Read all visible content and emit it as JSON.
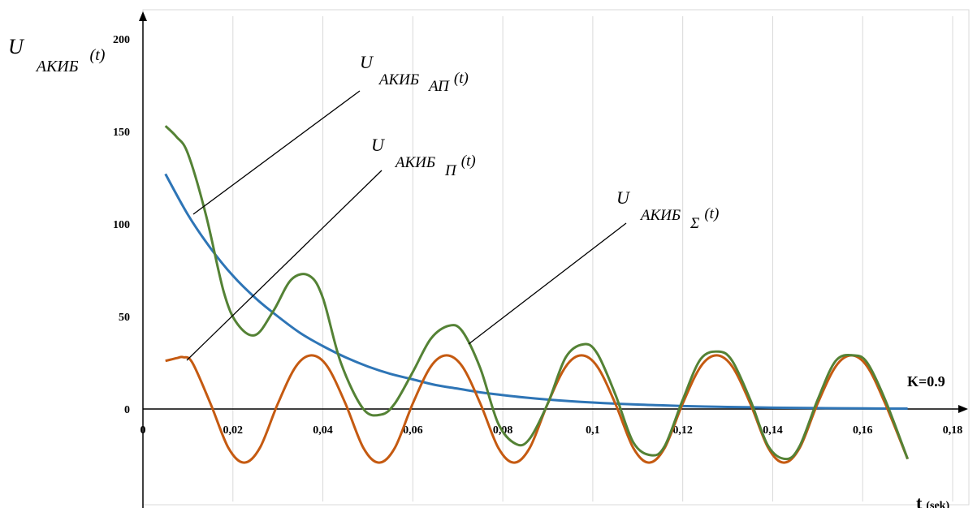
{
  "chart_data": {
    "type": "line",
    "x_ticks": [
      "0",
      "0,02",
      "0,04",
      "0,06",
      "0,08",
      "0,1",
      "0,12",
      "0,14",
      "0,16",
      "0,18"
    ],
    "y_ticks": [
      "0",
      "50",
      "100",
      "150",
      "200"
    ],
    "xlim": [
      0,
      0.18
    ],
    "ylim": [
      -50,
      200
    ],
    "grid": "vertical-only",
    "y_axis_label": {
      "main": "U",
      "sub": "АКИБ",
      "arg": "(t)"
    },
    "x_axis_label": {
      "main": "t",
      "sub": "(sek)"
    },
    "k_label": "K=0.9",
    "series": [
      {
        "color": "#2e75b6",
        "annotation": {
          "main": "U",
          "sub": "АКИБ",
          "sub2": "АП",
          "arg": "(t)"
        },
        "x": [
          0.005,
          0.01,
          0.015,
          0.02,
          0.025,
          0.03,
          0.035,
          0.04,
          0.045,
          0.05,
          0.055,
          0.06,
          0.065,
          0.07,
          0.075,
          0.08,
          0.085,
          0.09,
          0.095,
          0.1,
          0.105,
          0.11,
          0.115,
          0.12,
          0.125,
          0.13,
          0.135,
          0.14,
          0.145,
          0.15,
          0.155,
          0.16,
          0.165,
          0.17
        ],
        "y": [
          127,
          105,
          87,
          72,
          60,
          50,
          41,
          34,
          28,
          23,
          19,
          16,
          13,
          11,
          9,
          7.5,
          6.2,
          5.1,
          4.2,
          3.5,
          2.9,
          2.4,
          2.0,
          1.6,
          1.3,
          1.1,
          0.9,
          0.7,
          0.6,
          0.5,
          0.4,
          0.3,
          0.2,
          0.2
        ]
      },
      {
        "color": "#c55a11",
        "annotation": {
          "main": "U",
          "sub": "АКИБ",
          "sub2": "П",
          "arg": "(t)"
        },
        "x": [
          0.005,
          0.0075,
          0.009,
          0.011,
          0.015,
          0.019,
          0.0225,
          0.026,
          0.03,
          0.034,
          0.0375,
          0.041,
          0.045,
          0.049,
          0.0525,
          0.056,
          0.06,
          0.064,
          0.0675,
          0.071,
          0.075,
          0.079,
          0.0825,
          0.086,
          0.09,
          0.094,
          0.0975,
          0.101,
          0.105,
          0.109,
          0.1125,
          0.116,
          0.12,
          0.124,
          0.1275,
          0.131,
          0.135,
          0.139,
          0.1425,
          0.146,
          0.15,
          0.154,
          0.1575,
          0.161,
          0.165,
          0.17
        ],
        "y": [
          26,
          27.5,
          28,
          25,
          3,
          -21,
          -29,
          -21,
          3,
          23,
          29,
          23,
          3,
          -21,
          -29,
          -21,
          3,
          23,
          29,
          23,
          3,
          -21,
          -29,
          -21,
          3,
          23,
          29,
          23,
          3,
          -21,
          -29,
          -21,
          3,
          23,
          29,
          23,
          3,
          -21,
          -29,
          -21,
          3,
          23,
          29,
          23,
          3,
          -27
        ]
      },
      {
        "color": "#548235",
        "annotation": {
          "main": "U",
          "sub": "АКИБ",
          "sub2": "Σ",
          "arg": "(t)"
        },
        "x": [
          0.005,
          0.0075,
          0.01,
          0.014,
          0.018,
          0.021,
          0.025,
          0.029,
          0.033,
          0.037,
          0.04,
          0.044,
          0.049,
          0.053,
          0.056,
          0.06,
          0.064,
          0.068,
          0.071,
          0.075,
          0.079,
          0.083,
          0.086,
          0.09,
          0.094,
          0.098,
          0.101,
          0.105,
          0.109,
          0.113,
          0.116,
          0.12,
          0.124,
          0.128,
          0.131,
          0.135,
          0.139,
          0.143,
          0.146,
          0.15,
          0.154,
          0.158,
          0.161,
          0.165,
          0.17
        ],
        "y": [
          153,
          147,
          138,
          105,
          63,
          46,
          40,
          53,
          70,
          72,
          60,
          25,
          0,
          -3,
          3,
          20,
          38,
          45,
          42,
          22,
          -8,
          -19,
          -16,
          3,
          28,
          35,
          30,
          8,
          -18,
          -25,
          -20,
          5,
          27,
          31,
          26,
          5,
          -20,
          -27,
          -20,
          5,
          26,
          29,
          25,
          5,
          -27
        ]
      }
    ]
  }
}
